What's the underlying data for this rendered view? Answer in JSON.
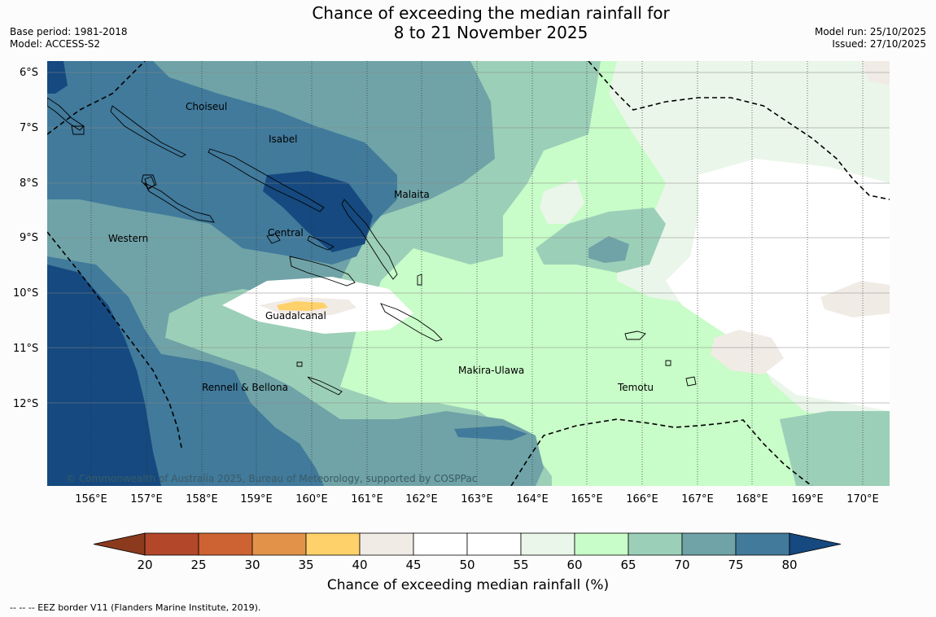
{
  "header": {
    "title_line1": "Chance of exceeding the median rainfall for",
    "title_line2": "8 to 21 November 2025",
    "base_period": "Base period: 1981-2018",
    "model": "Model: ACCESS-S2",
    "model_run": "Model run: 25/10/2025",
    "issued": "Issued: 27/10/2025"
  },
  "map": {
    "lat_labels": [
      "6°S",
      "7°S",
      "8°S",
      "9°S",
      "10°S",
      "11°S",
      "12°S"
    ],
    "lon_labels": [
      "156°E",
      "157°E",
      "158°E",
      "159°E",
      "160°E",
      "161°E",
      "162°E",
      "163°E",
      "164°E",
      "165°E",
      "166°E",
      "167°E",
      "168°E",
      "169°E",
      "170°E"
    ],
    "provinces": {
      "choiseul": "Choiseul",
      "isabel": "Isabel",
      "malaita": "Malaita",
      "western": "Western",
      "central": "Central",
      "guadalcanal": "Guadalcanal",
      "makira": "Makira-Ulawa",
      "rennell": "Rennell & Bellona",
      "temotu": "Temotu"
    },
    "copyright": "© Commonwealth of Australia 2025, Bureau of Meteorology, supported by COSPPac"
  },
  "colorbar": {
    "title": "Chance of exceeding median rainfall (%)",
    "ticks": [
      "20",
      "25",
      "30",
      "35",
      "40",
      "45",
      "50",
      "55",
      "60",
      "65",
      "70",
      "75",
      "80"
    ],
    "colors": {
      "lt20": "#8b3a1e",
      "c20_25": "#b2472a",
      "c25_30": "#cd6333",
      "c30_35": "#e3924a",
      "c35_40": "#fed16a",
      "c40_45": "#f1ebe6",
      "c45_50": "#ffffff",
      "c50_55": "#ffffff",
      "c55_60": "#eaf6e9",
      "c60_65": "#c8fcc8",
      "c65_70": "#9ccfb8",
      "c70_75": "#6fa3a7",
      "c75_80": "#417a9b",
      "gt80": "#15497f"
    }
  },
  "footnote": "-- -- -- EEZ border V11 (Flanders Marine Institute, 2019)."
}
